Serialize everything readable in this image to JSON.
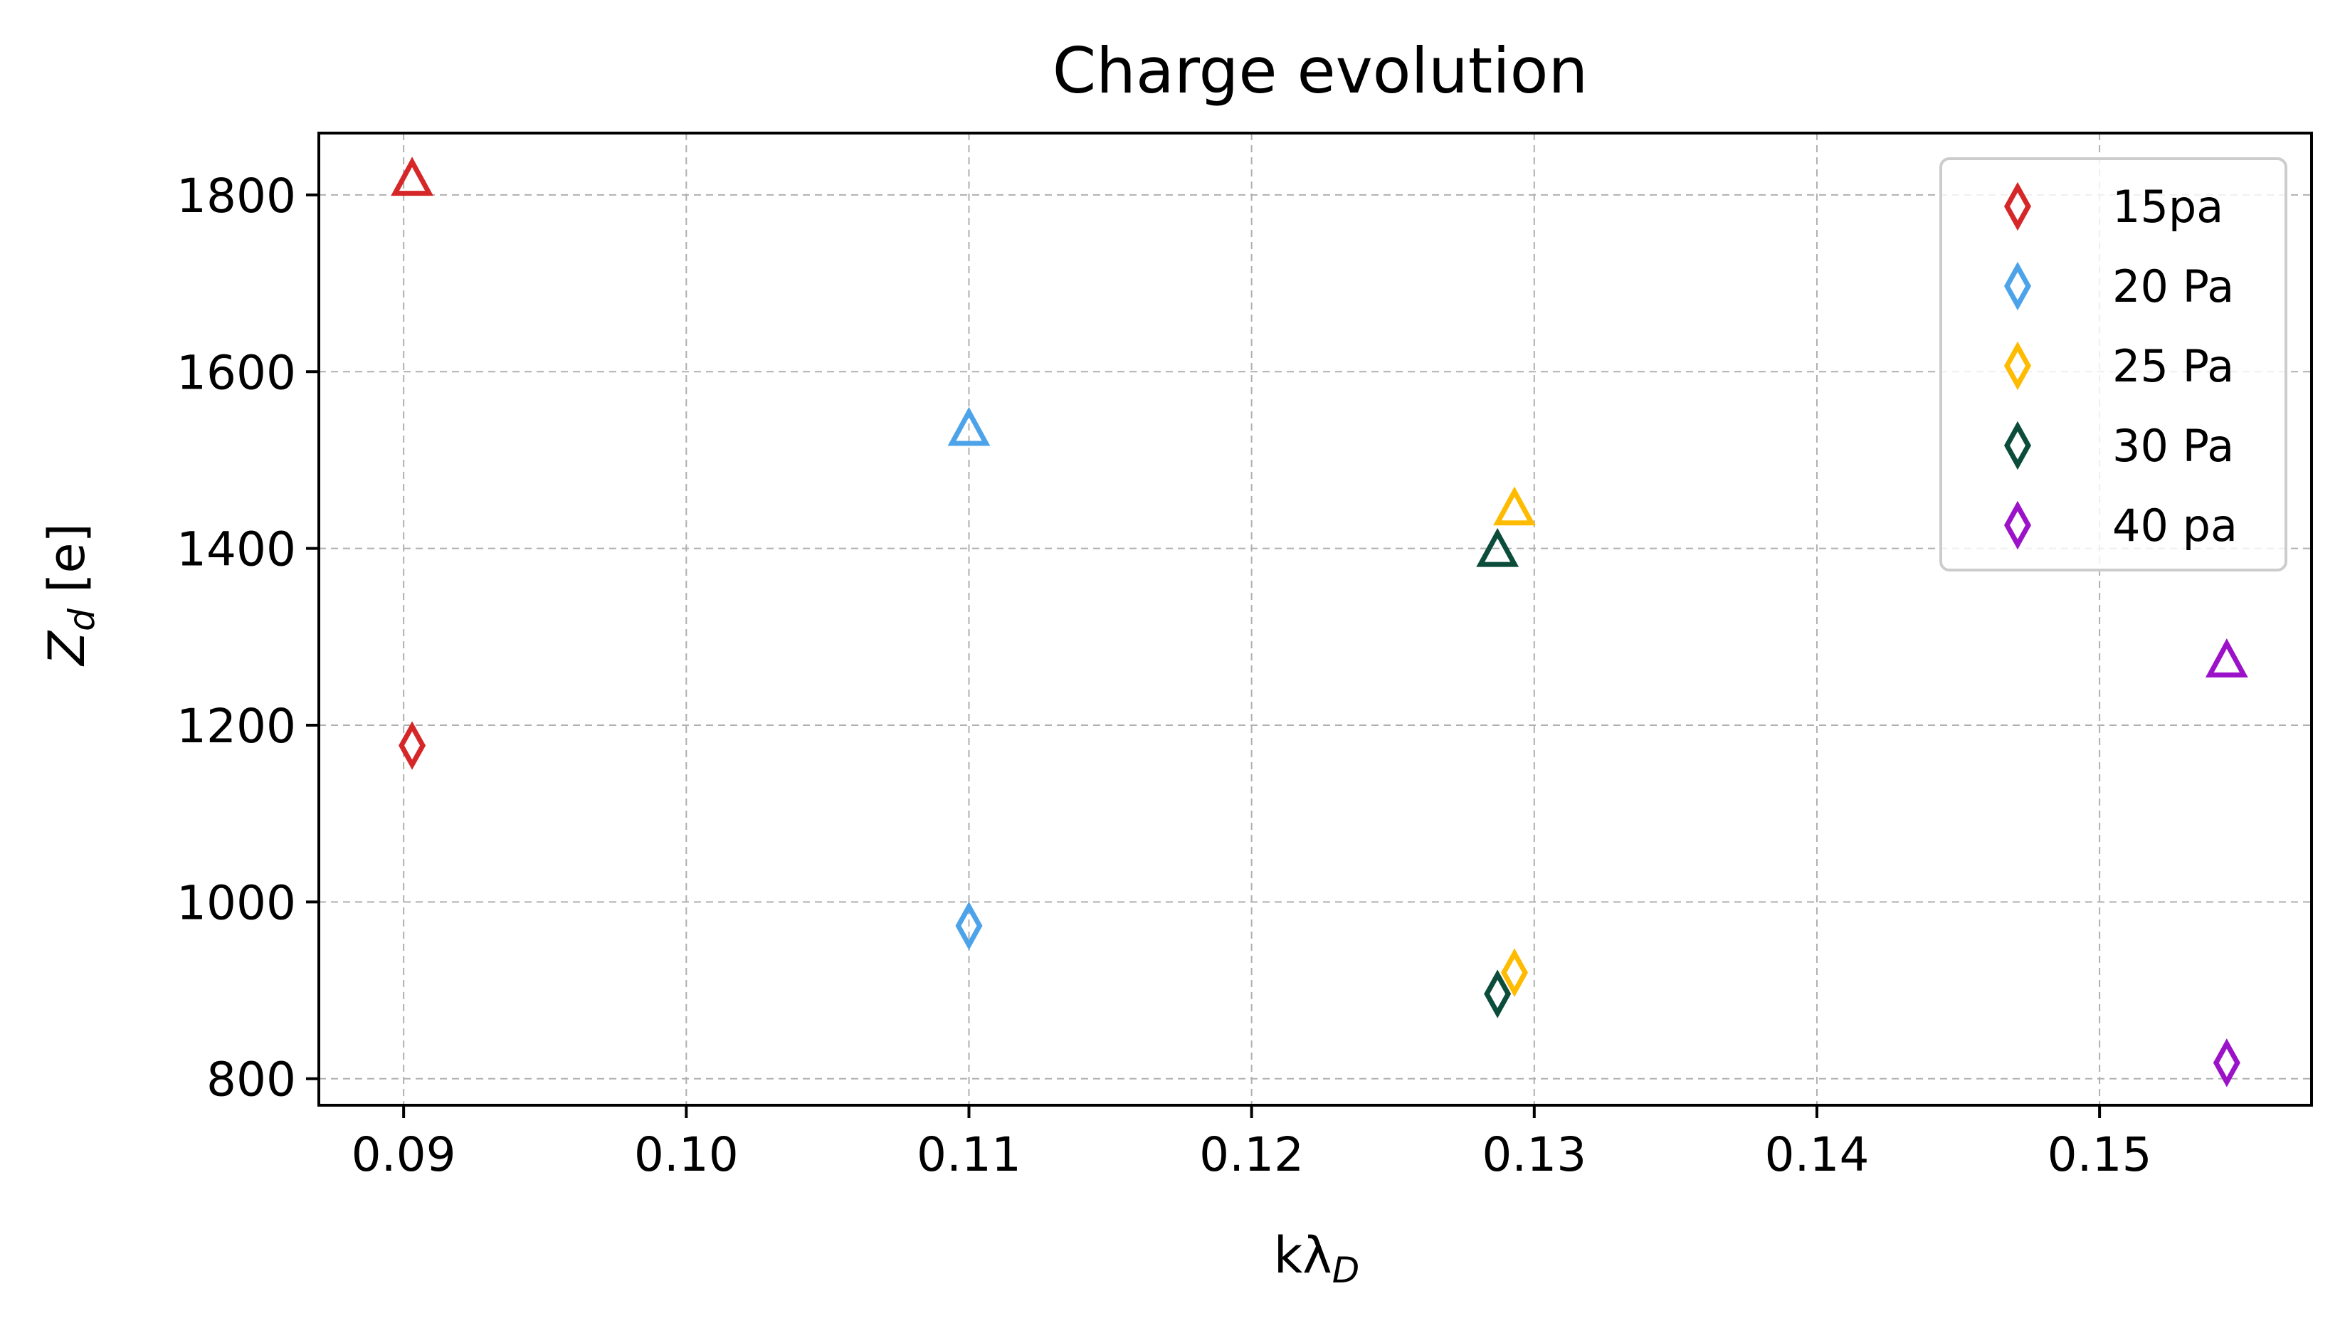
{
  "chart_data": {
    "type": "scatter",
    "title": "Charge evolution",
    "xlabel": "kλ",
    "xlabel_sub": "D",
    "ylabel": "Z",
    "ylabel_sub": "d",
    "ylabel_unit": " [e]",
    "xlim": [
      0.087,
      0.1575
    ],
    "ylim": [
      770,
      1870
    ],
    "xticks": [
      0.09,
      0.1,
      0.11,
      0.12,
      0.13,
      0.14,
      0.15
    ],
    "xtick_labels": [
      "0.09",
      "0.10",
      "0.11",
      "0.12",
      "0.13",
      "0.14",
      "0.15"
    ],
    "yticks": [
      800,
      1000,
      1200,
      1400,
      1600,
      1800
    ],
    "ytick_labels": [
      "800",
      "1000",
      "1200",
      "1400",
      "1600",
      "1800"
    ],
    "grid": true,
    "legend_position": "top-right",
    "series": [
      {
        "name": "15pa",
        "color": "#d62728",
        "diamond": [
          0.0903,
          1177
        ],
        "triangle": [
          0.0903,
          1818
        ]
      },
      {
        "name": "20 Pa",
        "color": "#4da3ea",
        "diamond": [
          0.11,
          973
        ],
        "triangle": [
          0.11,
          1535
        ]
      },
      {
        "name": "25 Pa",
        "color": "#ffbb00",
        "diamond": [
          0.1293,
          920
        ],
        "triangle": [
          0.1293,
          1445
        ]
      },
      {
        "name": "30 Pa",
        "color": "#0b4d3a",
        "diamond": [
          0.1287,
          896
        ],
        "triangle": [
          0.1287,
          1398
        ]
      },
      {
        "name": "40 pa",
        "color": "#9b12c9",
        "diamond": [
          0.1545,
          818
        ],
        "triangle": [
          0.1545,
          1273
        ]
      }
    ]
  }
}
